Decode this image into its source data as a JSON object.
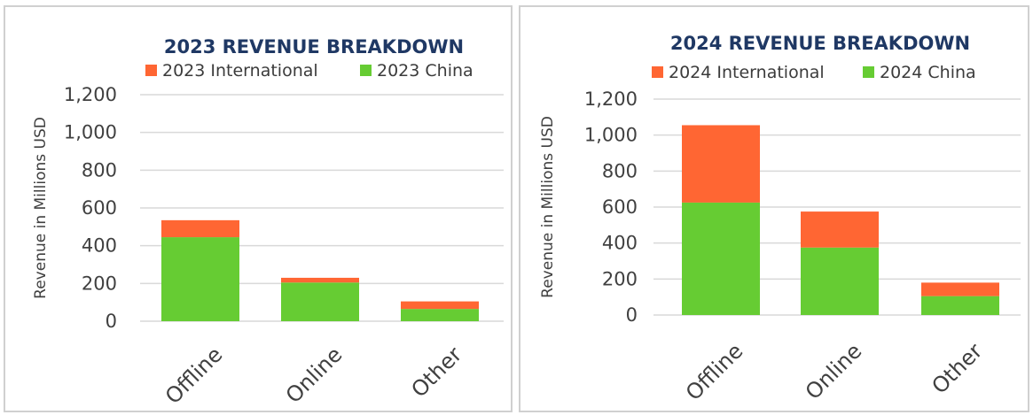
{
  "chart_data": [
    {
      "type": "bar",
      "stacked": true,
      "title": "2023 REVENUE BREAKDOWN",
      "ylabel": "Revenue in Millions USD",
      "xlabel": "",
      "categories": [
        "Offline",
        "Online",
        "Other"
      ],
      "series": [
        {
          "name": "2023 China",
          "color": "#66cc33",
          "values": [
            445,
            205,
            65
          ]
        },
        {
          "name": "2023 International",
          "color": "#ff6633",
          "values": [
            90,
            25,
            40
          ]
        }
      ],
      "yticks": [
        "0",
        "200",
        "400",
        "600",
        "800",
        "1,000",
        "1,200"
      ],
      "ylim": [
        0,
        1200
      ],
      "grid": true,
      "legend": "top"
    },
    {
      "type": "bar",
      "stacked": true,
      "title": "2024 REVENUE BREAKDOWN",
      "ylabel": "Revenue in Millions USD",
      "xlabel": "",
      "categories": [
        "Offline",
        "Online",
        "Other"
      ],
      "series": [
        {
          "name": "2024 China",
          "color": "#66cc33",
          "values": [
            625,
            375,
            105
          ]
        },
        {
          "name": "2024 International",
          "color": "#ff6633",
          "values": [
            430,
            200,
            75
          ]
        }
      ],
      "yticks": [
        "0",
        "200",
        "400",
        "600",
        "800",
        "1,000",
        "1,200"
      ],
      "ylim": [
        0,
        1200
      ],
      "grid": true,
      "legend": "top"
    }
  ]
}
